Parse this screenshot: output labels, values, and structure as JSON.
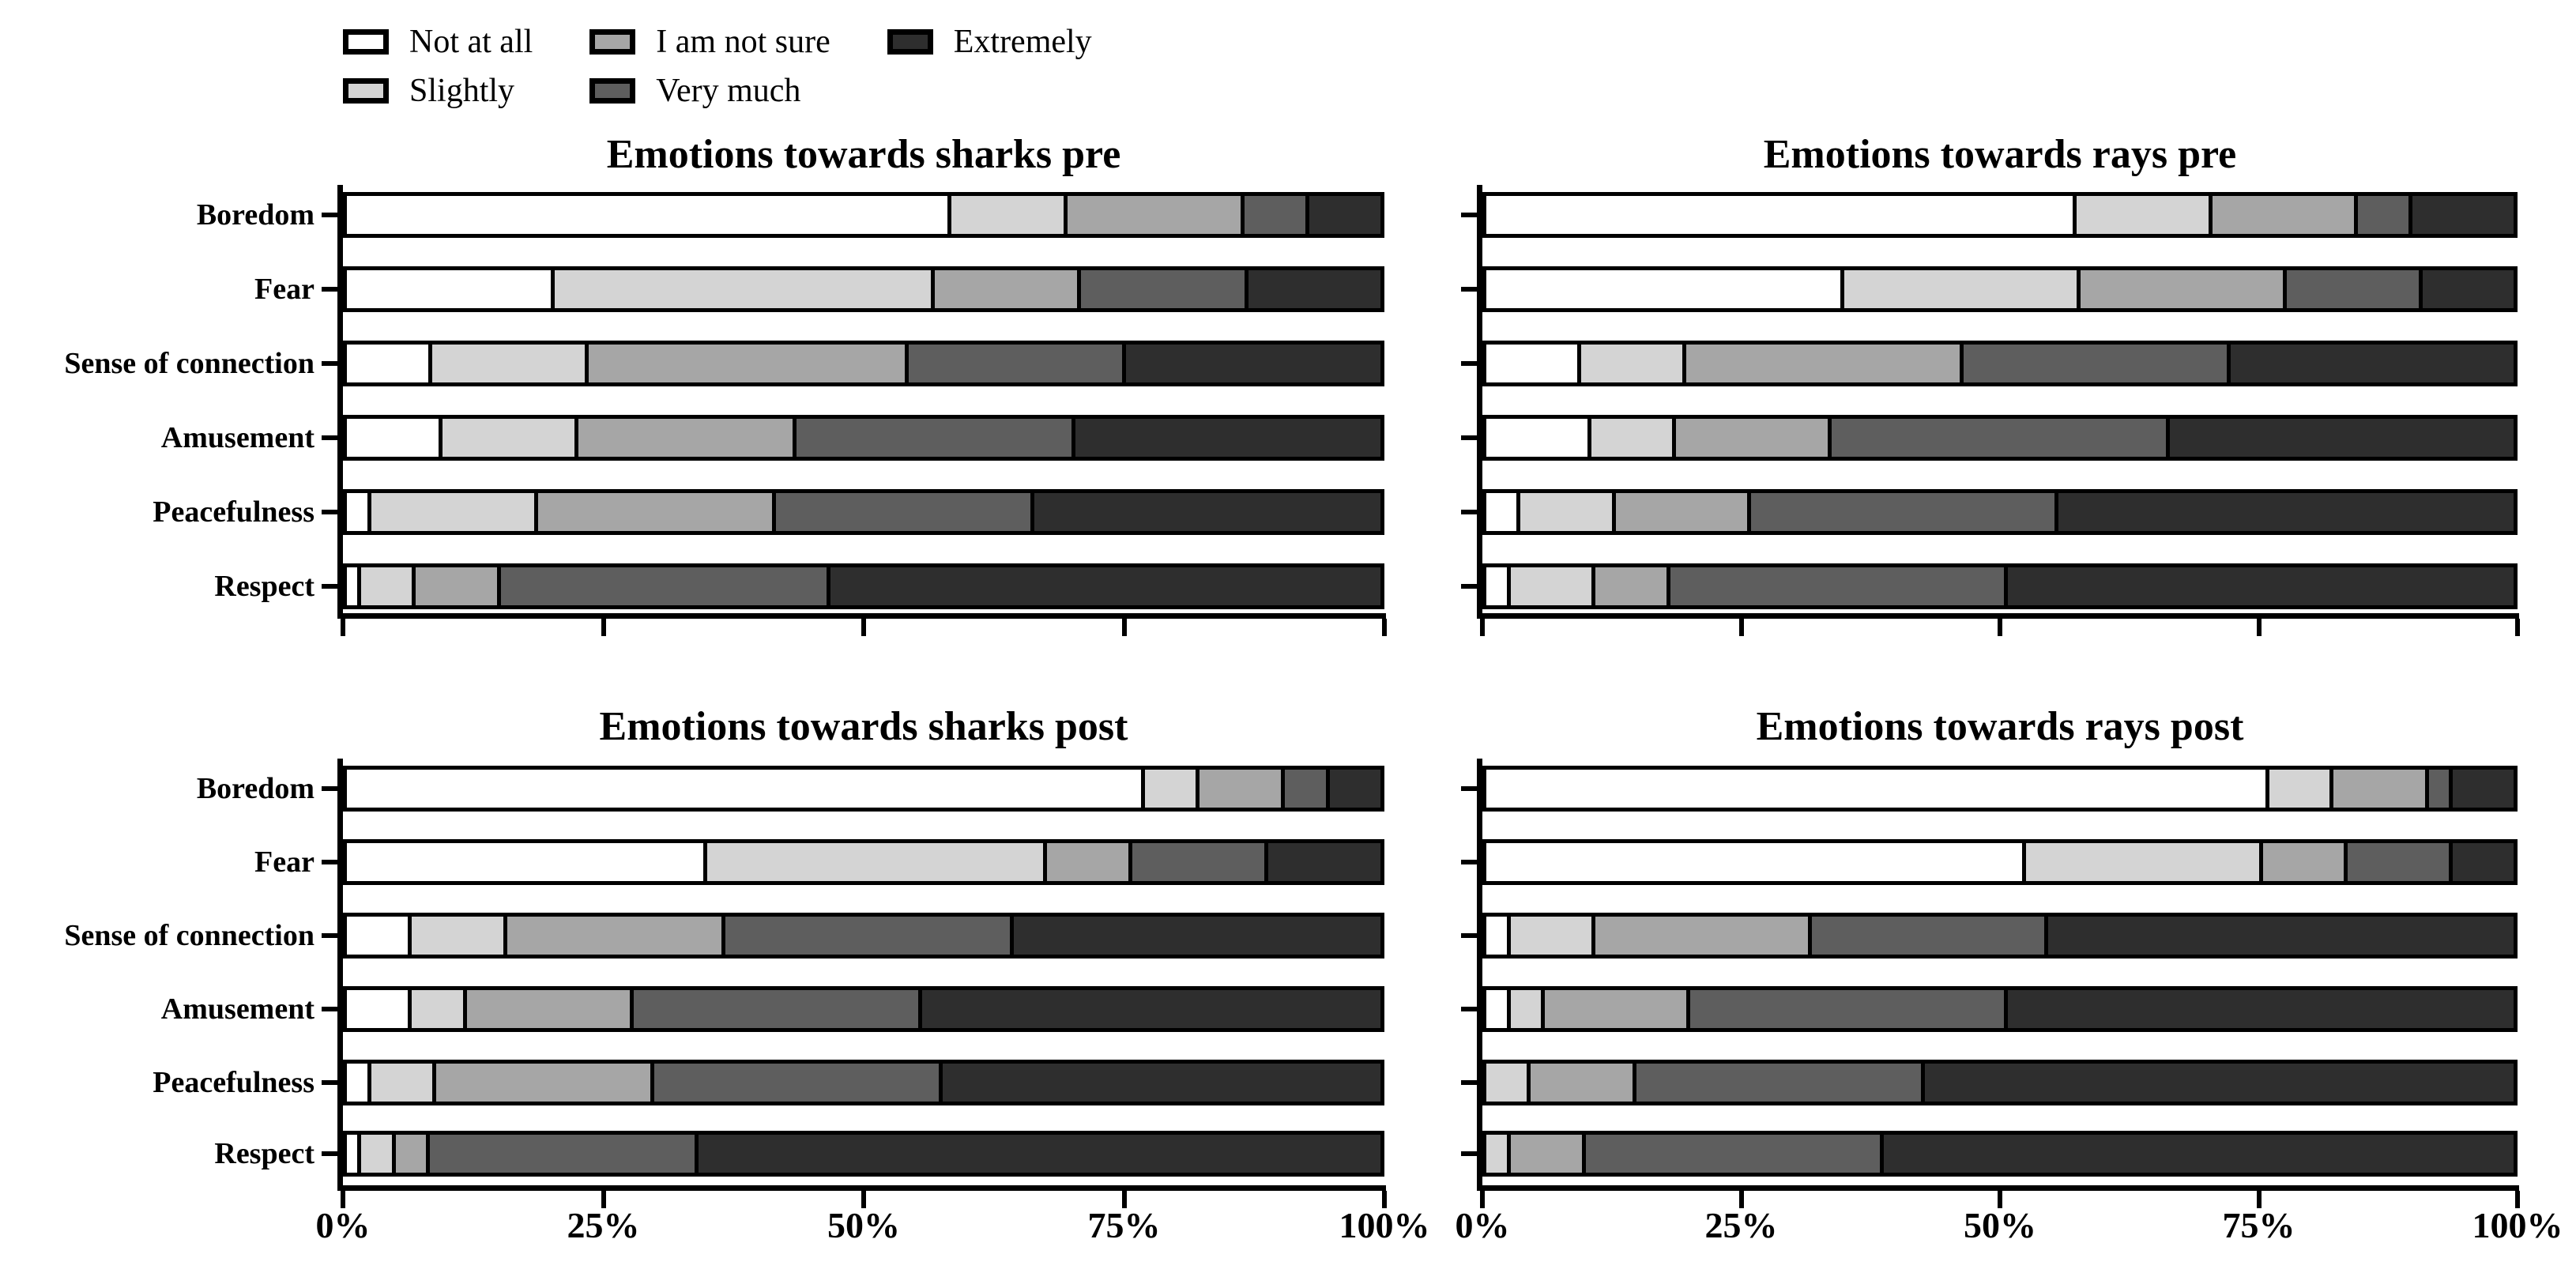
{
  "legend": {
    "items": [
      {
        "label": "Not at all",
        "color": "#ffffff"
      },
      {
        "label": "Slightly",
        "color": "#d4d4d4"
      },
      {
        "label": "I am not sure",
        "color": "#a6a6a6"
      },
      {
        "label": "Very much",
        "color": "#5e5e5e"
      },
      {
        "label": "Extremely",
        "color": "#2e2e2e"
      }
    ]
  },
  "x_ticks": [
    "0%",
    "25%",
    "50%",
    "75%",
    "100%"
  ],
  "categories": [
    "Boredom",
    "Fear",
    "Sense of connection",
    "Amusement",
    "Peacefulness",
    "Respect"
  ],
  "chart_data": [
    {
      "type": "bar",
      "stacked": true,
      "orientation": "horizontal",
      "title": "Emotions towards sharks pre",
      "xlabel": "",
      "ylabel": "",
      "xlim": [
        0,
        100
      ],
      "x_tick_labels_shown": false,
      "category_labels_shown": true,
      "categories": [
        "Boredom",
        "Fear",
        "Sense of connection",
        "Amusement",
        "Peacefulness",
        "Respect"
      ],
      "series": [
        {
          "name": "Not at all",
          "values": [
            59,
            20,
            8,
            9,
            2,
            1
          ]
        },
        {
          "name": "Slightly",
          "values": [
            11,
            37,
            15,
            13,
            16,
            5
          ]
        },
        {
          "name": "I am not sure",
          "values": [
            17,
            14,
            31,
            21,
            23,
            8
          ]
        },
        {
          "name": "Very much",
          "values": [
            6,
            16,
            21,
            27,
            25,
            32
          ]
        },
        {
          "name": "Extremely",
          "values": [
            7,
            13,
            25,
            30,
            34,
            54
          ]
        }
      ]
    },
    {
      "type": "bar",
      "stacked": true,
      "orientation": "horizontal",
      "title": "Emotions towards rays pre",
      "xlabel": "",
      "ylabel": "",
      "xlim": [
        0,
        100
      ],
      "x_tick_labels_shown": false,
      "category_labels_shown": false,
      "categories": [
        "Boredom",
        "Fear",
        "Sense of connection",
        "Amusement",
        "Peacefulness",
        "Respect"
      ],
      "series": [
        {
          "name": "Not at all",
          "values": [
            58,
            35,
            9,
            10,
            3,
            2
          ]
        },
        {
          "name": "Slightly",
          "values": [
            13,
            23,
            10,
            8,
            9,
            8
          ]
        },
        {
          "name": "I am not sure",
          "values": [
            14,
            20,
            27,
            15,
            13,
            7
          ]
        },
        {
          "name": "Very much",
          "values": [
            5,
            13,
            26,
            33,
            30,
            33
          ]
        },
        {
          "name": "Extremely",
          "values": [
            10,
            9,
            28,
            34,
            45,
            50
          ]
        }
      ]
    },
    {
      "type": "bar",
      "stacked": true,
      "orientation": "horizontal",
      "title": "Emotions towards sharks post",
      "xlabel": "",
      "ylabel": "",
      "xlim": [
        0,
        100
      ],
      "x_tick_labels_shown": true,
      "category_labels_shown": true,
      "categories": [
        "Boredom",
        "Fear",
        "Sense of connection",
        "Amusement",
        "Peacefulness",
        "Respect"
      ],
      "series": [
        {
          "name": "Not at all",
          "values": [
            78,
            35,
            6,
            6,
            2,
            1
          ]
        },
        {
          "name": "Slightly",
          "values": [
            5,
            33,
            9,
            5,
            6,
            3
          ]
        },
        {
          "name": "I am not sure",
          "values": [
            8,
            8,
            21,
            16,
            21,
            3
          ]
        },
        {
          "name": "Very much",
          "values": [
            4,
            13,
            28,
            28,
            28,
            26
          ]
        },
        {
          "name": "Extremely",
          "values": [
            5,
            11,
            36,
            45,
            43,
            67
          ]
        }
      ]
    },
    {
      "type": "bar",
      "stacked": true,
      "orientation": "horizontal",
      "title": "Emotions towards rays post",
      "xlabel": "",
      "ylabel": "",
      "xlim": [
        0,
        100
      ],
      "x_tick_labels_shown": true,
      "category_labels_shown": false,
      "categories": [
        "Boredom",
        "Fear",
        "Sense of connection",
        "Amusement",
        "Peacefulness",
        "Respect"
      ],
      "series": [
        {
          "name": "Not at all",
          "values": [
            77,
            53,
            2,
            2,
            0,
            0
          ]
        },
        {
          "name": "Slightly",
          "values": [
            6,
            23,
            8,
            3,
            4,
            2
          ]
        },
        {
          "name": "I am not sure",
          "values": [
            9,
            8,
            21,
            14,
            10,
            7
          ]
        },
        {
          "name": "Very much",
          "values": [
            2,
            10,
            23,
            31,
            28,
            29
          ]
        },
        {
          "name": "Extremely",
          "values": [
            6,
            6,
            46,
            50,
            58,
            62
          ]
        }
      ]
    }
  ]
}
